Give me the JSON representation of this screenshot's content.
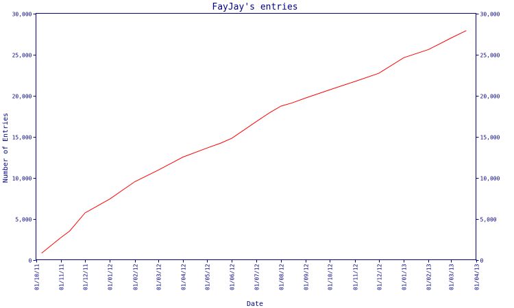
{
  "chart_data": {
    "type": "line",
    "title": "FayJay's entries",
    "xlabel": "Date",
    "ylabel": "Number of Entries",
    "ylim": [
      0,
      30000
    ],
    "yticks": [
      0,
      5000,
      10000,
      15000,
      20000,
      25000,
      30000
    ],
    "ytick_labels": [
      "0",
      "5,000",
      "10,000",
      "15,000",
      "20,000",
      "25,000",
      "30,000"
    ],
    "xticks": [
      "01/10/11",
      "01/11/11",
      "01/12/11",
      "01/01/12",
      "01/02/12",
      "01/03/12",
      "01/04/12",
      "01/05/12",
      "01/06/12",
      "01/07/12",
      "01/08/12",
      "01/09/12",
      "01/10/12",
      "01/11/12",
      "01/12/12",
      "01/01/13",
      "01/02/13",
      "01/03/13",
      "01/04/13"
    ],
    "right_axis": true,
    "grid": false,
    "line_color": "#ff0000",
    "axis_color": "#000080",
    "series": [
      {
        "x": [
          "2011-10-08",
          "2011-11-01",
          "2011-11-12",
          "2011-12-01",
          "2012-01-01",
          "2012-02-01",
          "2012-03-01",
          "2012-04-01",
          "2012-05-01",
          "2012-05-18",
          "2012-06-01",
          "2012-07-01",
          "2012-07-18",
          "2012-08-01",
          "2012-08-15",
          "2012-09-01",
          "2012-10-01",
          "2012-11-01",
          "2012-12-01",
          "2013-01-01",
          "2013-02-01",
          "2013-03-01",
          "2013-03-20"
        ],
        "y": [
          800,
          2700,
          3500,
          5700,
          7400,
          9500,
          10900,
          12500,
          13600,
          14200,
          14800,
          16800,
          17900,
          18700,
          19100,
          19700,
          20700,
          21700,
          22700,
          24600,
          25600,
          27000,
          27900
        ]
      }
    ]
  }
}
